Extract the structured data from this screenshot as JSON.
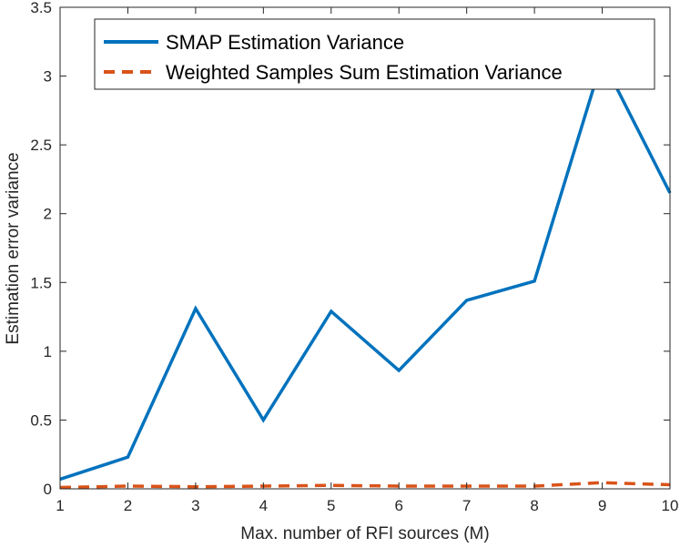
{
  "chart_data": {
    "type": "line",
    "x": [
      1,
      2,
      3,
      4,
      5,
      6,
      7,
      8,
      9,
      10
    ],
    "series": [
      {
        "name": "SMAP Estimation Variance",
        "values": [
          0.07,
          0.23,
          1.31,
          0.5,
          1.29,
          0.86,
          1.37,
          1.51,
          3.12,
          2.15
        ],
        "color": "#0072BD",
        "style": "solid"
      },
      {
        "name": "Weighted Samples Sum Estimation Variance",
        "values": [
          0.01,
          0.02,
          0.015,
          0.02,
          0.025,
          0.02,
          0.02,
          0.02,
          0.045,
          0.03
        ],
        "color": "#D95319",
        "style": "dashed"
      }
    ],
    "xlabel": "Max. number of RFI sources (M)",
    "ylabel": "Estimation error variance",
    "xlim": [
      1,
      10
    ],
    "ylim": [
      0,
      3.5
    ],
    "xticks": [
      "1",
      "2",
      "3",
      "4",
      "5",
      "6",
      "7",
      "8",
      "9",
      "10"
    ],
    "yticks": [
      "0",
      "0.5",
      "1",
      "1.5",
      "2",
      "2.5",
      "3",
      "3.5"
    ],
    "grid": false,
    "legend_position": "top-left"
  }
}
